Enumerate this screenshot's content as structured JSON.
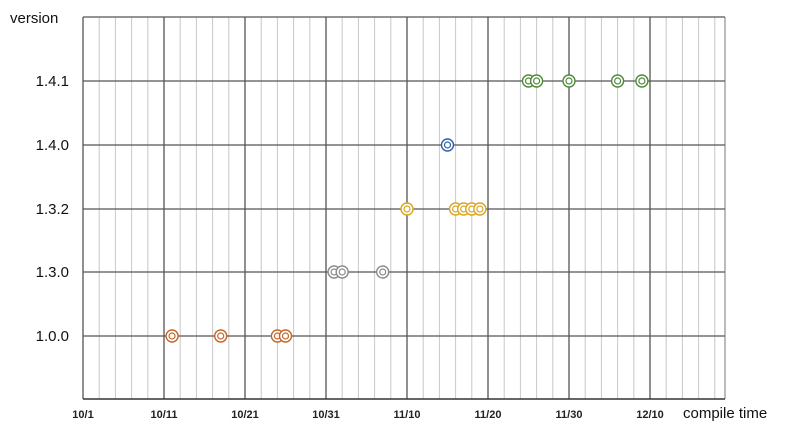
{
  "chart_data": {
    "type": "scatter",
    "ylabel": "version",
    "xlabel": "compile time",
    "x_ticks": [
      "10/1",
      "10/11",
      "10/21",
      "10/31",
      "11/10",
      "11/20",
      "11/30",
      "12/10"
    ],
    "y_categories": [
      "1.0.0",
      "1.3.0",
      "1.3.2",
      "1.4.0",
      "1.4.1"
    ],
    "grid": true,
    "series": [
      {
        "category": "1.0.0",
        "color": "#c5652a",
        "x": [
          "10/12",
          "10/18",
          "10/25",
          "10/26"
        ]
      },
      {
        "category": "1.3.0",
        "color": "#8a8a8a",
        "x": [
          "11/1",
          "11/2",
          "11/7"
        ]
      },
      {
        "category": "1.3.2",
        "color": "#d9a51e",
        "x": [
          "11/10",
          "11/16",
          "11/17",
          "11/18",
          "11/19"
        ]
      },
      {
        "category": "1.4.0",
        "color": "#2e5fa8",
        "x": [
          "11/15"
        ]
      },
      {
        "category": "1.4.1",
        "color": "#4f8a3a",
        "x": [
          "11/25",
          "11/26",
          "11/30",
          "12/6",
          "12/9"
        ]
      }
    ]
  }
}
